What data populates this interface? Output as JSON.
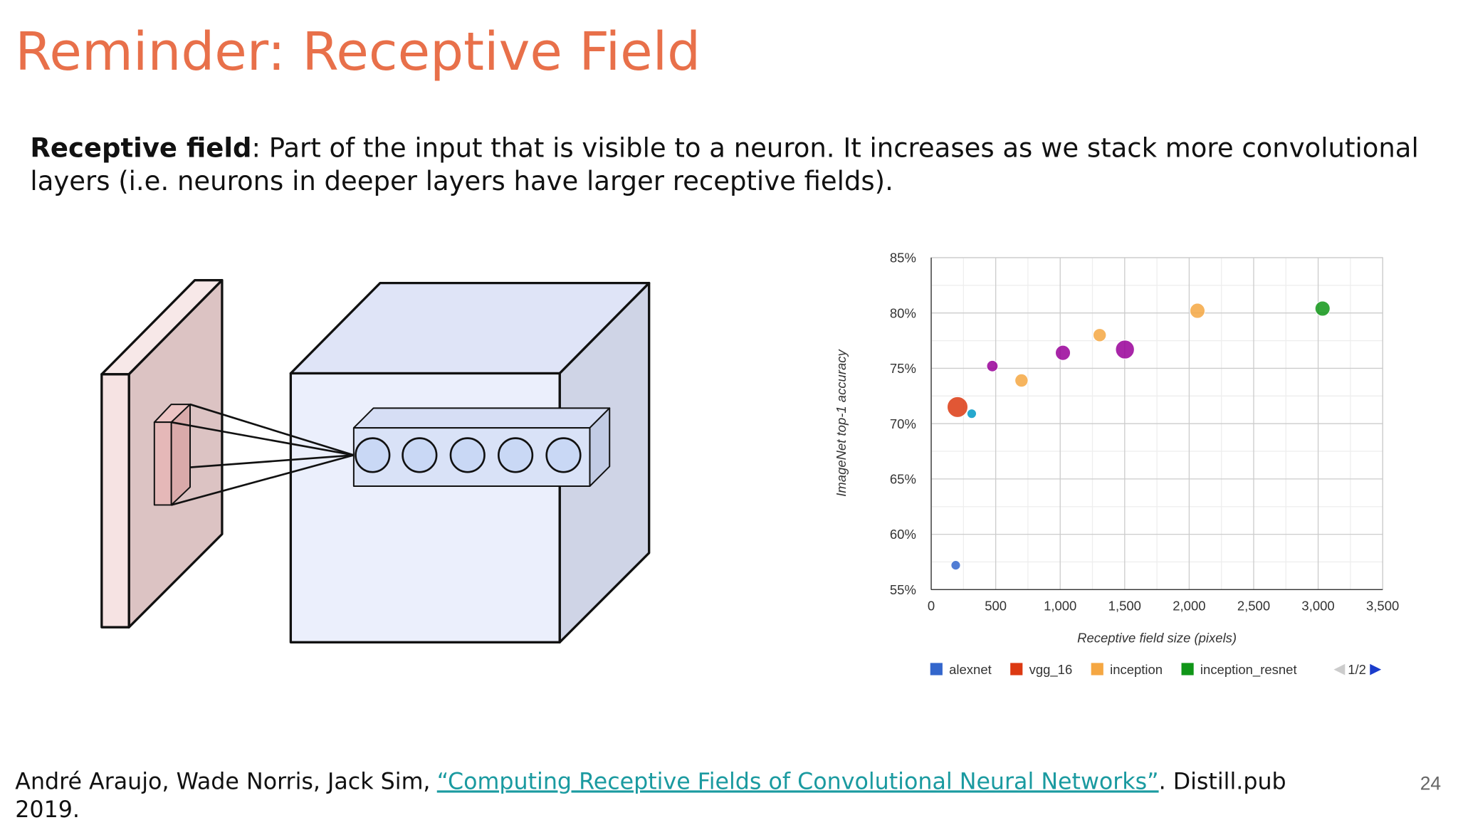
{
  "title": "Reminder: Receptive Field",
  "body": {
    "term": "Receptive field",
    "lines": [
      ": Part of the input that is visible to a neuron. It increases as we stack more convolutional",
      "layers (i.e. neurons in deeper layers have larger receptive fields)."
    ]
  },
  "chart_data": {
    "type": "scatter",
    "xlabel": "Receptive field size (pixels)",
    "ylabel": "ImageNet top-1 accuracy",
    "xlim": [
      0,
      3500
    ],
    "xticks": [
      0,
      500,
      {
        "value": 1000,
        "label": "1,000"
      },
      {
        "value": 1500,
        "label": "1,500"
      },
      {
        "value": 2000,
        "label": "2,000"
      },
      {
        "value": 2500,
        "label": "2,500"
      },
      {
        "value": 3000,
        "label": "3,000"
      },
      {
        "value": 3500,
        "label": "3,500"
      }
    ],
    "ylim": [
      55,
      85
    ],
    "yticks": [
      {
        "value": 55,
        "label": "55%"
      },
      {
        "value": 60,
        "label": "60%"
      },
      {
        "value": 65,
        "label": "65%"
      },
      {
        "value": 70,
        "label": "70%"
      },
      {
        "value": 75,
        "label": "75%"
      },
      {
        "value": 80,
        "label": "80%"
      },
      {
        "value": 85,
        "label": "85%"
      }
    ],
    "grid": true,
    "minor_grid": true,
    "legend_page": "1/2",
    "series": [
      {
        "name": "alexnet",
        "color": "#3366cc",
        "x": [
          190
        ],
        "values": [
          57.2
        ],
        "sizes": [
          25
        ]
      },
      {
        "name": "vgg_16",
        "color": "#dc3912",
        "x": [
          204
        ],
        "values": [
          71.5
        ],
        "sizes": [
          121
        ]
      },
      {
        "name": "inception",
        "color": "#f5a742",
        "x": [
          700,
          1306,
          2064
        ],
        "values": [
          73.9,
          78.0,
          80.2
        ],
        "sizes": [
          49,
          49,
          64
        ]
      },
      {
        "name": "inception_resnet",
        "color": "#109618",
        "x": [
          3034
        ],
        "values": [
          80.4
        ],
        "sizes": [
          64
        ]
      },
      {
        "color": "#990099",
        "x": [
          474,
          1021,
          1502
        ],
        "values": [
          75.2,
          76.4,
          76.7
        ],
        "sizes": [
          36,
          64,
          100
        ]
      },
      {
        "color": "#0099c6",
        "x": [
          314
        ],
        "values": [
          70.9
        ],
        "sizes": [
          25
        ]
      }
    ]
  },
  "citation": {
    "authors": "André Araujo, Wade Norris, Jack Sim,",
    "link": "“Computing Receptive Fields of Convolutional Neural Networks”",
    "rest": ". Distill.pub",
    "year": "2019."
  },
  "page_number": "24"
}
